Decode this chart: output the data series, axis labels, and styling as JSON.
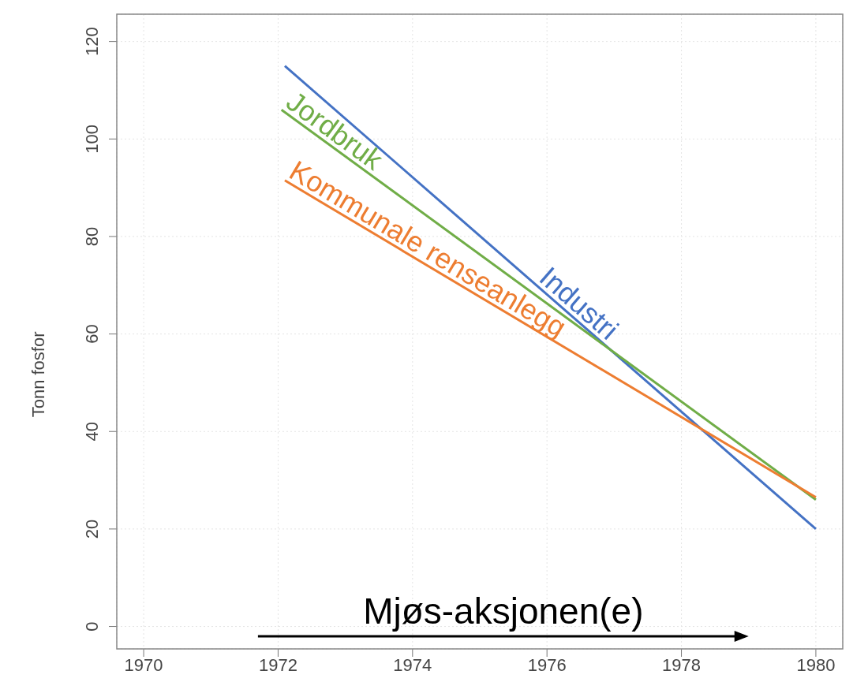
{
  "chart_data": {
    "type": "line",
    "ylabel": "Tonn fosfor",
    "series": [
      {
        "name": "Industri",
        "color": "#4472c4",
        "x": [
          1972.1,
          1980
        ],
        "values": [
          115,
          20
        ]
      },
      {
        "name": "Jordbruk",
        "color": "#70ad47",
        "x": [
          1972.05,
          1980
        ],
        "values": [
          106,
          26
        ]
      },
      {
        "name": "Kommunale renseanlegg",
        "color": "#ed7d31",
        "x": [
          1972.1,
          1980
        ],
        "values": [
          91.5,
          26.5
        ]
      }
    ],
    "xlim": [
      1969.6,
      1980.4
    ],
    "xticks": [
      1970,
      1972,
      1974,
      1976,
      1978,
      1980
    ],
    "ylim": [
      -4.6,
      125.6
    ],
    "yticks": [
      0,
      20,
      40,
      60,
      80,
      100,
      120
    ],
    "grid": true,
    "marker": "none",
    "line_style": "solid",
    "annotations": [
      "Mjøs-aksjonen(e)"
    ]
  }
}
